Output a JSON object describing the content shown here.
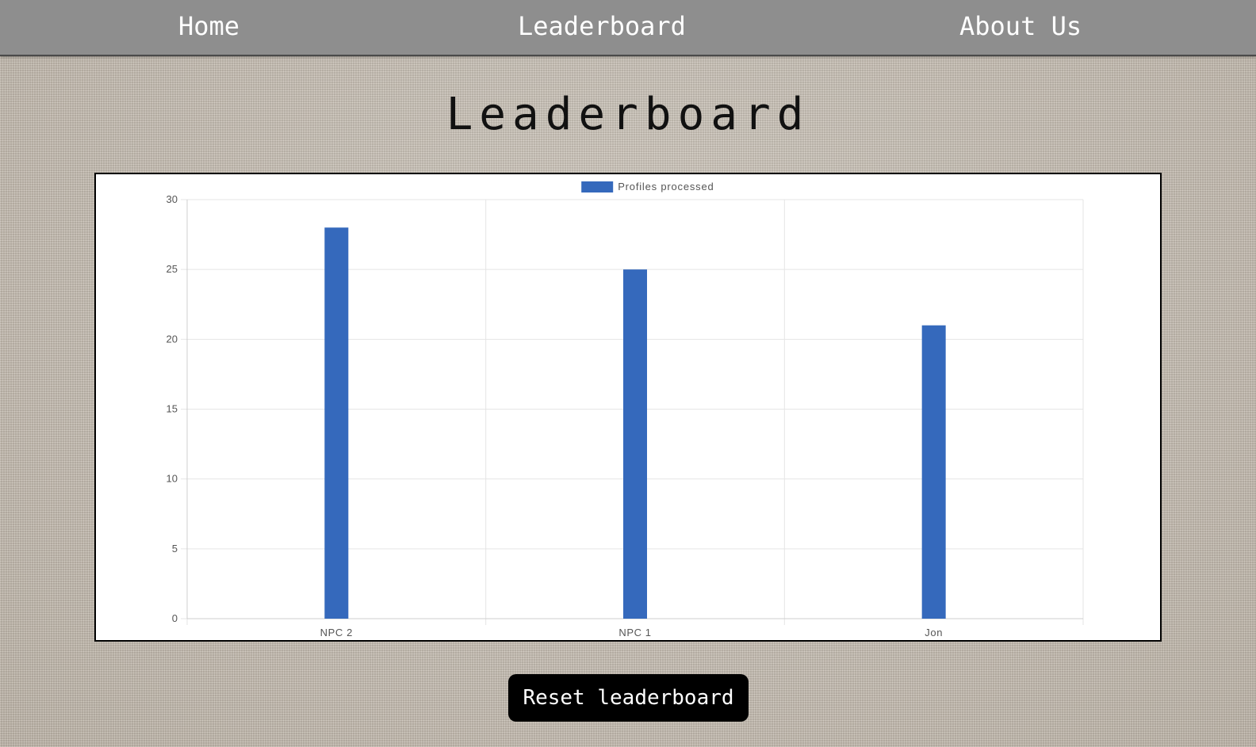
{
  "nav": {
    "home": "Home",
    "leaderboard": "Leaderboard",
    "about": "About Us"
  },
  "page": {
    "title": "Leaderboard"
  },
  "reset_button": {
    "label": "Reset leaderboard"
  },
  "colors": {
    "bar": "#3569bc",
    "navbar": "#8e8e8e",
    "grid": "#e5e5e5"
  },
  "chart_data": {
    "type": "bar",
    "title": "",
    "legend": [
      "Profiles processed"
    ],
    "legend_position": "top",
    "categories": [
      "NPC 2",
      "NPC 1",
      "Jon"
    ],
    "series": [
      {
        "name": "Profiles processed",
        "values": [
          28,
          25,
          21
        ]
      }
    ],
    "xlabel": "",
    "ylabel": "",
    "ylim": [
      0,
      30
    ],
    "yticks": [
      0,
      5,
      10,
      15,
      20,
      25,
      30
    ],
    "grid": true
  }
}
